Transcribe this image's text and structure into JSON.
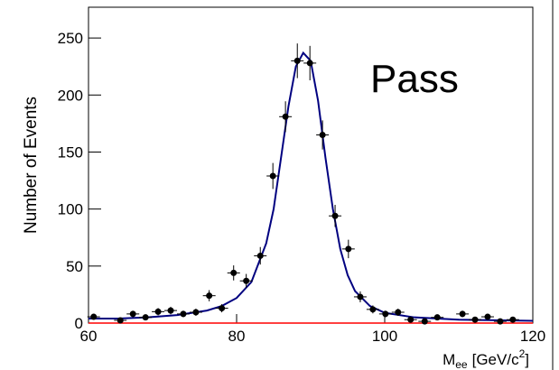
{
  "chart_data": {
    "type": "scatter",
    "annotation": "Pass",
    "ylabel": "Number of Events",
    "xlabel": [
      "M",
      "ee",
      "[GeV/c",
      "2",
      "]"
    ],
    "xlim": [
      60,
      120
    ],
    "ylim": [
      0,
      277
    ],
    "xticks": [
      60,
      80,
      100,
      120
    ],
    "yticks": [
      0,
      50,
      100,
      150,
      200,
      250
    ],
    "x": [
      60.7,
      64.3,
      66,
      67.7,
      69.4,
      71.1,
      72.8,
      74.5,
      76.3,
      78,
      79.6,
      81.3,
      83.2,
      84.9,
      86.6,
      88.2,
      89.9,
      91.6,
      93.3,
      95.1,
      96.7,
      98.4,
      100.1,
      101.8,
      103.5,
      105.4,
      107.1,
      110.5,
      112.2,
      113.9,
      115.6,
      117.3
    ],
    "values": [
      5.5,
      2.4,
      8,
      5,
      10,
      11,
      8,
      9.5,
      24,
      13,
      44,
      37,
      59,
      129,
      181,
      230,
      228,
      165,
      94,
      65,
      23,
      12,
      8,
      9.5,
      3,
      1.5,
      5,
      8,
      3,
      5.5,
      1.5,
      3
    ],
    "errors": [
      2.3,
      1.5,
      2.8,
      2.2,
      3.2,
      3.3,
      2.8,
      3.1,
      4.9,
      3.6,
      6.6,
      6.1,
      7.7,
      11.4,
      13.5,
      15.2,
      15.1,
      12.8,
      9.7,
      8.1,
      4.8,
      3.5,
      2.8,
      3.1,
      1.7,
      1.2,
      2.2,
      2.8,
      1.7,
      2.3,
      1.2,
      1.7
    ],
    "color": "#000000",
    "series": [
      {
        "color": "#000080",
        "x": [
          60,
          64,
          68,
          72,
          76,
          78,
          80,
          82,
          84,
          85,
          86,
          87,
          88,
          89,
          90,
          91,
          92,
          93,
          94,
          95,
          96,
          98,
          100,
          104,
          110,
          120
        ],
        "values": [
          4,
          4,
          5,
          7,
          11,
          15,
          22,
          36,
          70,
          100,
          145,
          190,
          225,
          237,
          230,
          195,
          145,
          100,
          65,
          42,
          28,
          15,
          9,
          5,
          3,
          2
        ]
      },
      {
        "color": "#ff0000",
        "x": [
          60,
          120
        ],
        "values": [
          0,
          0
        ]
      }
    ]
  }
}
